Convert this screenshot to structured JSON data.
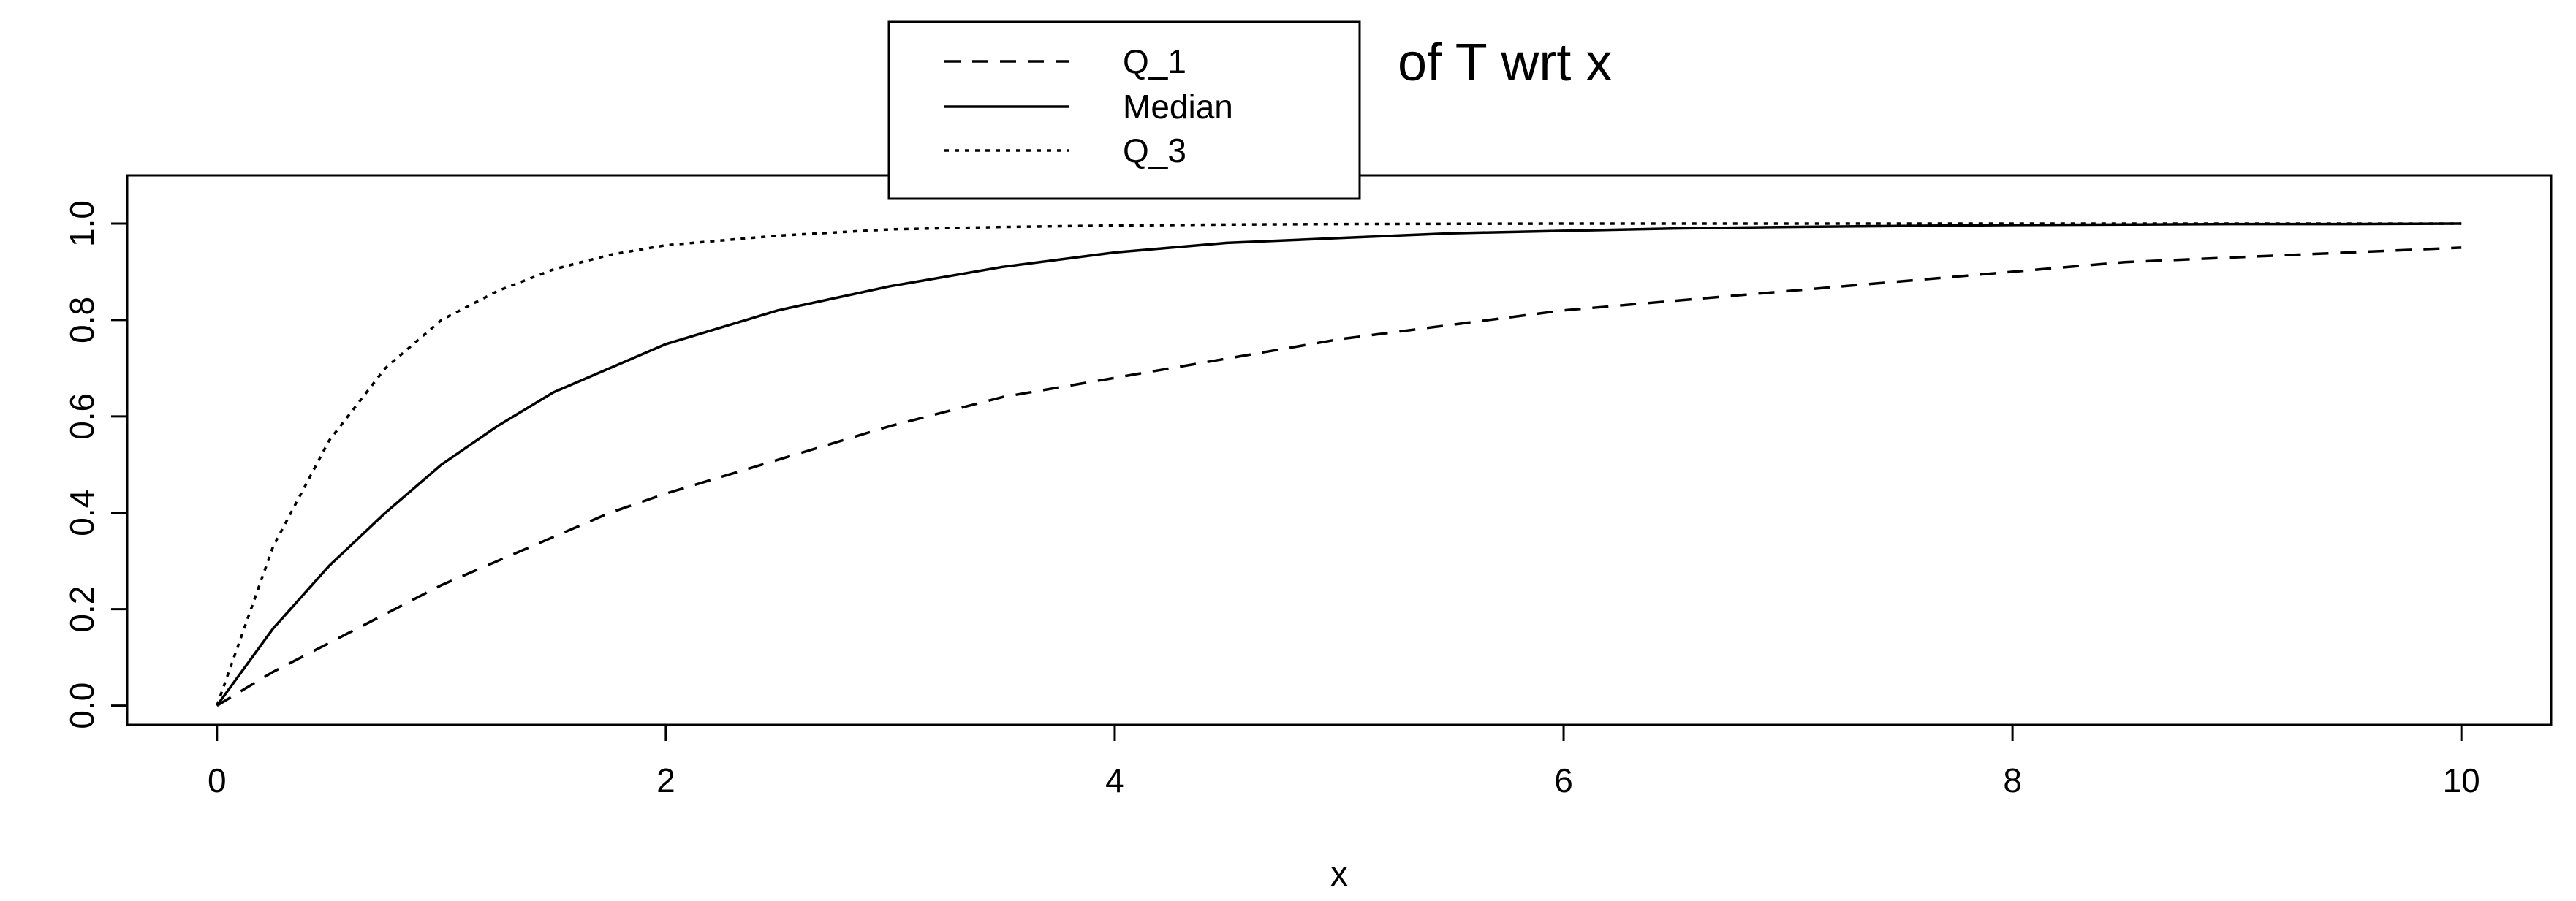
{
  "chart_data": {
    "type": "line",
    "title": "of T wrt x",
    "xlabel": "x",
    "ylabel": "",
    "xlim": [
      -0.4,
      10.4
    ],
    "ylim": [
      -0.04,
      1.1
    ],
    "grid": false,
    "legend_position": "top-center",
    "x_ticks": [
      0,
      2,
      4,
      6,
      8,
      10
    ],
    "x_tick_labels": [
      "0",
      "2",
      "4",
      "6",
      "8",
      "10"
    ],
    "y_ticks": [
      0.0,
      0.2,
      0.4,
      0.6,
      0.8,
      1.0
    ],
    "y_tick_labels": [
      "0.0",
      "0.2",
      "0.4",
      "0.6",
      "0.8",
      "1.0"
    ],
    "x": [
      0,
      0.25,
      0.5,
      0.75,
      1,
      1.25,
      1.5,
      1.75,
      2,
      2.5,
      3,
      3.5,
      4,
      4.5,
      5,
      5.5,
      6,
      6.5,
      7,
      7.5,
      8,
      8.5,
      9,
      9.5,
      10
    ],
    "series": [
      {
        "name": "Q_1",
        "line_style": "dashed",
        "color": "#000000",
        "values": [
          0,
          0.07,
          0.13,
          0.19,
          0.25,
          0.3,
          0.35,
          0.4,
          0.44,
          0.51,
          0.58,
          0.64,
          0.68,
          0.72,
          0.76,
          0.79,
          0.82,
          0.84,
          0.86,
          0.88,
          0.9,
          0.92,
          0.93,
          0.94,
          0.95
        ]
      },
      {
        "name": "Median",
        "line_style": "solid",
        "color": "#000000",
        "values": [
          0,
          0.16,
          0.29,
          0.4,
          0.5,
          0.58,
          0.65,
          0.7,
          0.75,
          0.82,
          0.87,
          0.91,
          0.94,
          0.96,
          0.97,
          0.98,
          0.985,
          0.99,
          0.993,
          0.995,
          0.997,
          0.998,
          0.999,
          0.999,
          1.0
        ]
      },
      {
        "name": "Q_3",
        "line_style": "dotted",
        "color": "#000000",
        "values": [
          0,
          0.33,
          0.55,
          0.7,
          0.8,
          0.86,
          0.905,
          0.935,
          0.955,
          0.975,
          0.988,
          0.993,
          0.996,
          0.998,
          0.999,
          0.9995,
          1.0,
          1.0,
          1.0,
          1.0,
          1.0,
          1.0,
          1.0,
          1.0,
          1.0
        ]
      }
    ]
  }
}
